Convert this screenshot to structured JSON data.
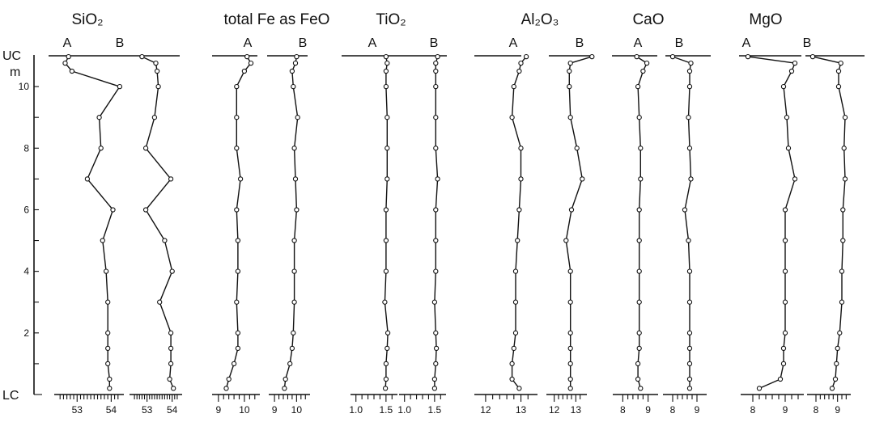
{
  "chart_data": {
    "type": "line",
    "y_axis": {
      "range": [
        0,
        11.0
      ],
      "ticks": [
        2,
        4,
        6,
        8,
        10
      ],
      "tick_labels": [
        "2",
        "4",
        "6",
        "8",
        "10"
      ],
      "top_label": "UC",
      "unit_label": "m",
      "bottom_label": "LC"
    },
    "grid": false,
    "depths": [
      10.97,
      10.76,
      10.5,
      10.0,
      9.0,
      8.0,
      7.0,
      6.0,
      5.0,
      4.0,
      3.0,
      2.0,
      1.5,
      1.0,
      0.5,
      0.2
    ],
    "panels": [
      {
        "title": "SiO₂",
        "xlim": [
          52.4,
          54.3
        ],
        "ticks": [
          52.5,
          52.6,
          52.7,
          52.8,
          52.9,
          53.0,
          53.1,
          53.2,
          53.3,
          53.4,
          53.5,
          53.6,
          53.7,
          53.8,
          53.9,
          54.0,
          54.1,
          54.2
        ],
        "tick_labels": [
          {
            "value": 53,
            "text": "53"
          },
          {
            "value": 54,
            "text": "54"
          }
        ],
        "series": [
          {
            "name": "A",
            "values": [
              52.75,
              52.65,
              52.85,
              54.25,
              53.65,
              53.7,
              53.3,
              54.05,
              53.75,
              53.85,
              53.9,
              53.9,
              53.9,
              53.9,
              53.95,
              53.95
            ]
          },
          {
            "name": "B",
            "values": [
              52.8,
              53.35,
              53.4,
              53.45,
              53.3,
              52.95,
              53.95,
              52.95,
              53.7,
              54.0,
              53.5,
              53.95,
              53.95,
              53.95,
              53.9,
              54.05
            ]
          }
        ]
      },
      {
        "title": "total Fe as FeO",
        "xlim": [
          8.85,
          10.5
        ],
        "ticks": [
          9.0,
          9.2,
          9.4,
          9.6,
          9.8,
          10.0,
          10.2,
          10.4
        ],
        "tick_labels": [
          {
            "value": 9,
            "text": "9"
          },
          {
            "value": 10,
            "text": "10"
          }
        ],
        "series": [
          {
            "name": "A",
            "values": [
              10.1,
              10.25,
              10.0,
              9.7,
              9.7,
              9.7,
              9.85,
              9.7,
              9.75,
              9.75,
              9.7,
              9.75,
              9.75,
              9.6,
              9.4,
              9.3
            ]
          },
          {
            "name": "B",
            "values": [
              10.0,
              9.95,
              9.8,
              9.85,
              10.05,
              9.9,
              9.95,
              10.0,
              9.9,
              9.9,
              9.9,
              9.85,
              9.8,
              9.7,
              9.5,
              9.45
            ]
          }
        ]
      },
      {
        "title": "TiO₂",
        "xlim": [
          0.95,
          1.65
        ],
        "ticks": [
          1.0,
          1.1,
          1.2,
          1.3,
          1.4,
          1.5,
          1.6
        ],
        "tick_labels": [
          {
            "value": 1.0,
            "text": "1.0"
          },
          {
            "value": 1.5,
            "text": "1.5"
          }
        ],
        "series": [
          {
            "name": "A",
            "values": [
              1.5,
              1.52,
              1.5,
              1.5,
              1.52,
              1.52,
              1.52,
              1.5,
              1.5,
              1.5,
              1.48,
              1.53,
              1.52,
              1.5,
              1.5,
              1.49
            ]
          },
          {
            "name": "B",
            "values": [
              1.55,
              1.52,
              1.52,
              1.52,
              1.52,
              1.52,
              1.55,
              1.52,
              1.52,
              1.52,
              1.5,
              1.52,
              1.53,
              1.52,
              1.5,
              1.5
            ]
          }
        ]
      },
      {
        "title": "Al₂O₃",
        "xlim": [
          11.75,
          13.4
        ],
        "ticks": [
          12.0,
          12.2,
          12.4,
          12.6,
          12.8,
          13.0,
          13.2
        ],
        "tick_labels": [
          {
            "value": 12,
            "text": "12"
          },
          {
            "value": 13,
            "text": "13"
          }
        ],
        "series": [
          {
            "name": "A",
            "values": [
              13.15,
              13.0,
              12.95,
              12.8,
              12.75,
              13.0,
              13.0,
              12.95,
              12.9,
              12.85,
              12.85,
              12.85,
              12.8,
              12.75,
              12.75,
              12.95
            ]
          },
          {
            "name": "B",
            "values": [
              13.75,
              12.75,
              12.7,
              12.7,
              12.75,
              13.05,
              13.3,
              12.8,
              12.55,
              12.75,
              12.75,
              12.75,
              12.75,
              12.75,
              12.75,
              12.75
            ]
          }
        ]
      },
      {
        "title": "CaO",
        "xlim": [
          7.7,
          9.3
        ],
        "ticks": [
          8.0,
          8.2,
          8.4,
          8.6,
          8.8,
          9.0
        ],
        "tick_labels": [
          {
            "value": 8,
            "text": "8"
          },
          {
            "value": 9,
            "text": "9"
          }
        ],
        "series": [
          {
            "name": "A",
            "values": [
              8.55,
              8.95,
              8.8,
              8.6,
              8.65,
              8.7,
              8.7,
              8.65,
              8.65,
              8.65,
              8.65,
              8.65,
              8.65,
              8.6,
              8.6,
              8.7
            ]
          },
          {
            "name": "B",
            "values": [
              8.0,
              8.75,
              8.7,
              8.7,
              8.65,
              8.7,
              8.75,
              8.5,
              8.65,
              8.7,
              8.7,
              8.7,
              8.7,
              8.7,
              8.7,
              8.7
            ]
          }
        ]
      },
      {
        "title": "MgO",
        "xlim": [
          7.7,
          9.5
        ],
        "ticks": [
          8.0,
          8.2,
          8.4,
          8.6,
          8.8,
          9.0,
          9.2,
          9.4
        ],
        "tick_labels": [
          {
            "value": 8,
            "text": "8"
          },
          {
            "value": 9,
            "text": "9"
          }
        ],
        "series": [
          {
            "name": "A",
            "values": [
              7.85,
              9.3,
              9.2,
              8.95,
              9.05,
              9.1,
              9.3,
              9.0,
              9.0,
              9.0,
              9.0,
              9.0,
              8.95,
              8.95,
              8.85,
              8.2
            ]
          },
          {
            "name": "B",
            "values": [
              7.85,
              9.15,
              9.05,
              9.05,
              9.35,
              9.3,
              9.35,
              9.25,
              9.25,
              9.2,
              9.2,
              9.1,
              9.0,
              8.95,
              8.9,
              8.75
            ]
          }
        ]
      }
    ]
  }
}
